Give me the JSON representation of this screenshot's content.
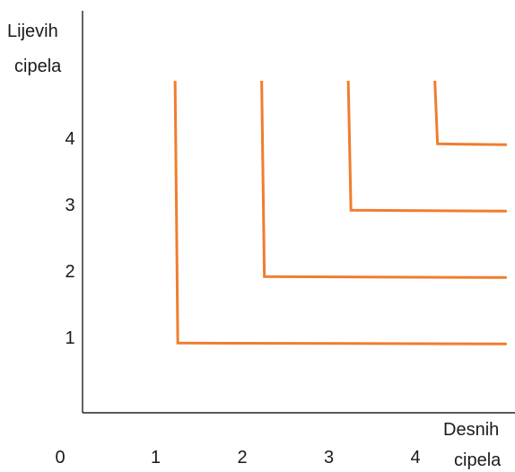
{
  "chart_data": {
    "type": "line",
    "ylabel": [
      "Lijevih",
      "cipela"
    ],
    "xlabel": [
      "Desnih",
      "cipela"
    ],
    "origin_label": "0",
    "x_ticks": [
      "1",
      "2",
      "3",
      "4"
    ],
    "y_ticks": [
      "1",
      "2",
      "3",
      "4"
    ],
    "xlim": [
      0,
      4.9
    ],
    "ylim": [
      0,
      5.3
    ],
    "line_color": "#F07D2E",
    "axis_color": "#222222",
    "grid": false,
    "series": [
      {
        "corner": [
          1.1,
          1.05
        ],
        "top_y": 5,
        "right_x": 4.9
      },
      {
        "corner": [
          2.1,
          2.05
        ],
        "top_y": 5,
        "right_x": 4.9
      },
      {
        "corner": [
          3.1,
          3.05
        ],
        "top_y": 5,
        "right_x": 4.9
      },
      {
        "corner": [
          4.1,
          4.05
        ],
        "top_y": 5,
        "right_x": 4.9
      }
    ]
  }
}
